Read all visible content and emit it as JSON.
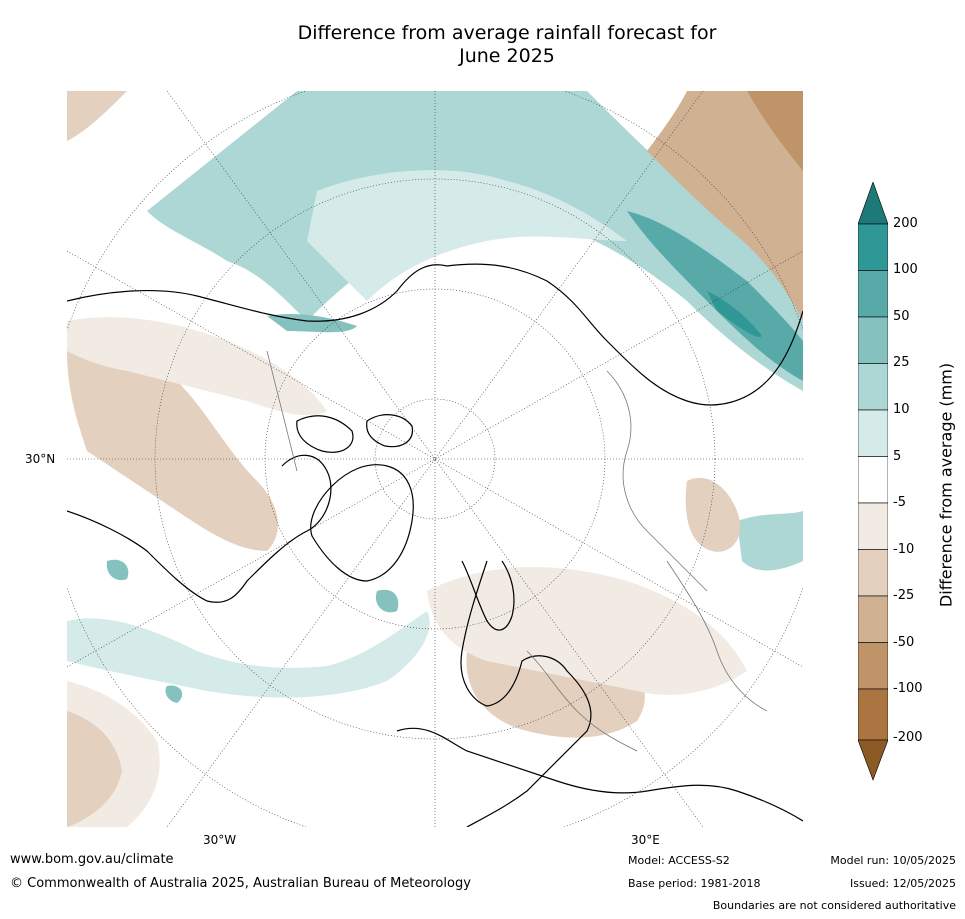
{
  "title_line1": "Difference from average rainfall forecast for",
  "title_line2": "June 2025",
  "colorbar": {
    "title": "Difference from average (mm)",
    "levels": [
      "200",
      "100",
      "50",
      "25",
      "10",
      "5",
      "-5",
      "-10",
      "-25",
      "-50",
      "-100",
      "-200"
    ],
    "colors": [
      "#1e7a79",
      "#2f9896",
      "#58aaa8",
      "#84c1bf",
      "#acd7d5",
      "#d5ebe9",
      "#ffffff",
      "#f1ebe4",
      "#e3d0bf",
      "#d0b293",
      "#bf9468",
      "#ab7541",
      "#8c5a24"
    ]
  },
  "labels": {
    "lat": "30°N",
    "lon_w": "30°W",
    "lon_e": "30°E"
  },
  "footer": {
    "website": "www.bom.gov.au/climate",
    "copyright": "© Commonwealth of Australia 2025, Australian Bureau of Meteorology",
    "model": "Model: ACCESS-S2",
    "base_period": "Base period: 1981-2018",
    "model_run": "Model run: 10/05/2025",
    "issued": "Issued: 12/05/2025",
    "disclaimer": "Boundaries are not considered authoritative"
  }
}
